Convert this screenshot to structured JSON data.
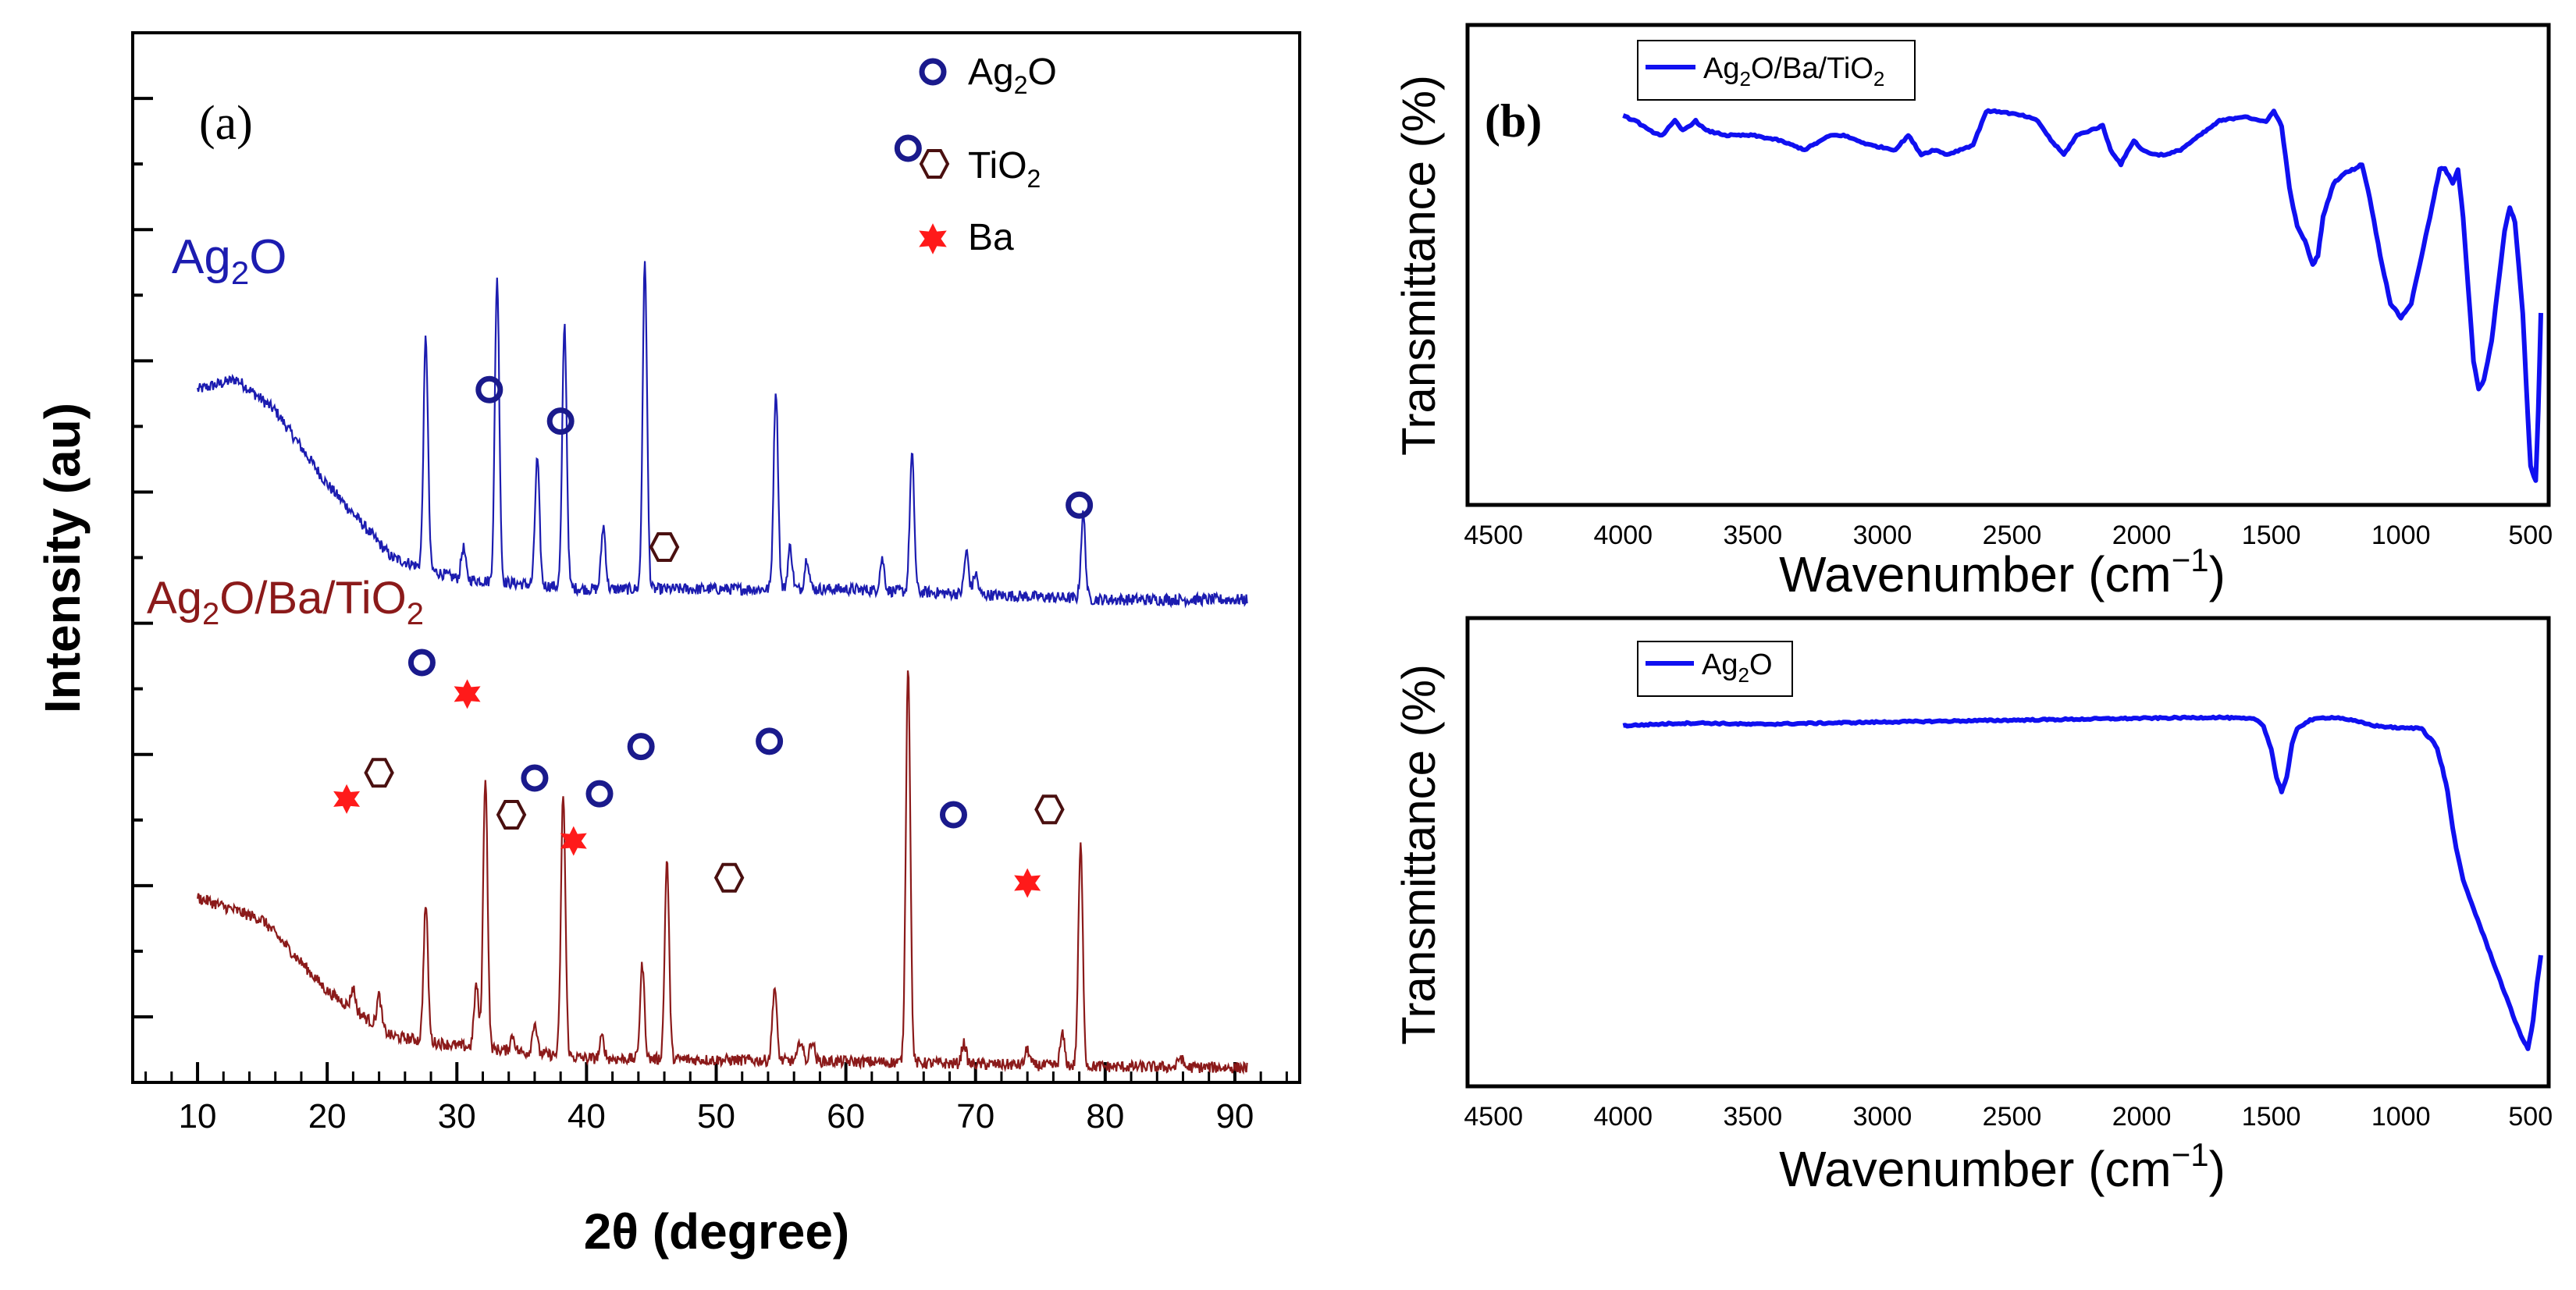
{
  "colors": {
    "ag2o_xrd": "#1c1cb0",
    "composite_xrd": "#8b1a1a",
    "ftir_line": "#1010f0",
    "ag2o_marker": "#1a1a8c",
    "tio2_marker": "#4a1010",
    "ba_marker": "#ff1a1a"
  },
  "chart_data": [
    {
      "id": "xrd",
      "type": "line",
      "panel_label": "(a)",
      "xlabel": "2θ (degree)",
      "ylabel": "Intensity (au)",
      "xlim": [
        5,
        95
      ],
      "ylim": [
        0,
        100
      ],
      "xticks": [
        "10",
        "20",
        "30",
        "40",
        "50",
        "60",
        "70",
        "80",
        "90"
      ],
      "legend": {
        "position": "top-right",
        "entries": [
          {
            "marker": "circle",
            "label_main": "Ag",
            "label_sub": "2",
            "label_tail": "O"
          },
          {
            "marker": "hexagon",
            "label_main": "TiO",
            "label_sub": "2",
            "label_tail": ""
          },
          {
            "marker": "star",
            "label_main": "Ba",
            "label_sub": "",
            "label_tail": ""
          }
        ]
      },
      "series": [
        {
          "name": "Ag2O",
          "label_main": "Ag",
          "label_sub": "2",
          "label_tail": "O",
          "baseline": [
            [
              10,
              66
            ],
            [
              13,
              67
            ],
            [
              16,
              64
            ],
            [
              20,
              57
            ],
            [
              25,
              50
            ],
            [
              30,
              48
            ],
            [
              40,
              47
            ],
            [
              60,
              47
            ],
            [
              80,
              46
            ],
            [
              91,
              46
            ]
          ],
          "peaks": [
            [
              27.6,
              22
            ],
            [
              30.5,
              3
            ],
            [
              33.1,
              29
            ],
            [
              36.2,
              12
            ],
            [
              38.3,
              25
            ],
            [
              41.3,
              6
            ],
            [
              44.5,
              31
            ],
            [
              54.6,
              19
            ],
            [
              55.7,
              4
            ],
            [
              57.0,
              3
            ],
            [
              62.8,
              3
            ],
            [
              65.1,
              13
            ],
            [
              69.3,
              4
            ],
            [
              70.0,
              2
            ],
            [
              78.3,
              8
            ]
          ]
        },
        {
          "name": "Ag2O/Ba/TiO2",
          "label_main": "Ag",
          "label_sub": "2",
          "label_tail": "O/Ba/TiO",
          "label_sub2": "2",
          "baseline": [
            [
              10,
              17.6
            ],
            [
              15,
              15.5
            ],
            [
              20,
              8.7
            ],
            [
              25,
              4.4
            ],
            [
              30,
              3.5
            ],
            [
              40,
              2.3
            ],
            [
              60,
              2
            ],
            [
              80,
              1.5
            ],
            [
              91,
              1.4
            ]
          ],
          "peaks": [
            [
              22,
              2
            ],
            [
              24,
              3
            ],
            [
              27.6,
              13
            ],
            [
              31.5,
              6
            ],
            [
              32.2,
              26
            ],
            [
              34.3,
              1.5
            ],
            [
              36,
              3
            ],
            [
              38.2,
              25
            ],
            [
              41.2,
              2
            ],
            [
              44.3,
              9
            ],
            [
              46.2,
              19
            ],
            [
              54.5,
              7
            ],
            [
              56.5,
              2
            ],
            [
              57.4,
              2
            ],
            [
              64.8,
              38
            ],
            [
              69.1,
              2
            ],
            [
              74,
              1.5
            ],
            [
              76.7,
              3
            ],
            [
              78.1,
              21
            ],
            [
              85.8,
              1
            ]
          ]
        }
      ],
      "annotations": [
        {
          "marker": "circle",
          "x": 64.8,
          "y": 89
        },
        {
          "marker": "circle",
          "x": 32.5,
          "y": 66
        },
        {
          "marker": "circle",
          "x": 38.0,
          "y": 63
        },
        {
          "marker": "circle",
          "x": 78.0,
          "y": 55
        },
        {
          "marker": "circle",
          "x": 27.3,
          "y": 40
        },
        {
          "marker": "circle",
          "x": 44.2,
          "y": 32
        },
        {
          "marker": "circle",
          "x": 54.1,
          "y": 32.5
        },
        {
          "marker": "circle",
          "x": 36.0,
          "y": 29
        },
        {
          "marker": "circle",
          "x": 41.0,
          "y": 27.5
        },
        {
          "marker": "circle",
          "x": 68.3,
          "y": 25.5
        },
        {
          "marker": "hexagon",
          "x": 46.0,
          "y": 51
        },
        {
          "marker": "hexagon",
          "x": 24.0,
          "y": 29.5
        },
        {
          "marker": "hexagon",
          "x": 34.2,
          "y": 25.5
        },
        {
          "marker": "hexagon",
          "x": 51.0,
          "y": 19.5
        },
        {
          "marker": "hexagon",
          "x": 75.7,
          "y": 26
        },
        {
          "marker": "star",
          "x": 21.5,
          "y": 27
        },
        {
          "marker": "star",
          "x": 30.8,
          "y": 37
        },
        {
          "marker": "star",
          "x": 39.0,
          "y": 23
        },
        {
          "marker": "star",
          "x": 74.0,
          "y": 19
        }
      ]
    },
    {
      "id": "ftir_composite",
      "type": "line",
      "panel_label": "(b)",
      "xlabel_main": "Wavenumber (cm",
      "xlabel_sup": "−1",
      "xlabel_tail": ")",
      "ylabel": "Transmittance (%)",
      "xlim": [
        4600,
        430
      ],
      "ylim": [
        0,
        100
      ],
      "xticks": [
        "4500",
        "4000",
        "3500",
        "3000",
        "2500",
        "2000",
        "1500",
        "1000",
        "500"
      ],
      "legend": {
        "position": "top-left",
        "label_main": "Ag",
        "label_sub": "2",
        "label_tail": "O/Ba/TiO",
        "label_sub2": "2"
      },
      "series": [
        {
          "name": "Ag2O/Ba/TiO2",
          "points": [
            [
              4000,
              81
            ],
            [
              3950,
              80
            ],
            [
              3900,
              78
            ],
            [
              3850,
              77
            ],
            [
              3800,
              80
            ],
            [
              3770,
              78
            ],
            [
              3720,
              80
            ],
            [
              3680,
              78
            ],
            [
              3600,
              77
            ],
            [
              3500,
              77
            ],
            [
              3400,
              76
            ],
            [
              3300,
              74
            ],
            [
              3200,
              77
            ],
            [
              3150,
              77
            ],
            [
              3050,
              75
            ],
            [
              2950,
              74
            ],
            [
              2900,
              77
            ],
            [
              2850,
              73
            ],
            [
              2800,
              74
            ],
            [
              2750,
              73
            ],
            [
              2700,
              74
            ],
            [
              2650,
              75
            ],
            [
              2600,
              82
            ],
            [
              2550,
              82
            ],
            [
              2450,
              81
            ],
            [
              2400,
              80
            ],
            [
              2350,
              76
            ],
            [
              2300,
              73
            ],
            [
              2250,
              77
            ],
            [
              2200,
              78
            ],
            [
              2150,
              79
            ],
            [
              2120,
              74
            ],
            [
              2080,
              71
            ],
            [
              2030,
              76
            ],
            [
              2000,
              74
            ],
            [
              1950,
              73
            ],
            [
              1900,
              73
            ],
            [
              1850,
              74
            ],
            [
              1800,
              76
            ],
            [
              1700,
              80
            ],
            [
              1600,
              81
            ],
            [
              1550,
              80
            ],
            [
              1520,
              80
            ],
            [
              1490,
              82
            ],
            [
              1460,
              79
            ],
            [
              1430,
              66
            ],
            [
              1400,
              58
            ],
            [
              1370,
              55
            ],
            [
              1340,
              50
            ],
            [
              1320,
              52
            ],
            [
              1300,
              60
            ],
            [
              1260,
              67
            ],
            [
              1220,
              69
            ],
            [
              1180,
              70
            ],
            [
              1150,
              71
            ],
            [
              1120,
              64
            ],
            [
              1080,
              52
            ],
            [
              1040,
              42
            ],
            [
              1000,
              39
            ],
            [
              960,
              42
            ],
            [
              920,
              52
            ],
            [
              880,
              62
            ],
            [
              850,
              70
            ],
            [
              830,
              70
            ],
            [
              800,
              67
            ],
            [
              780,
              70
            ],
            [
              760,
              60
            ],
            [
              740,
              45
            ],
            [
              720,
              30
            ],
            [
              700,
              24
            ],
            [
              680,
              26
            ],
            [
              650,
              34
            ],
            [
              620,
              48
            ],
            [
              600,
              57
            ],
            [
              580,
              62
            ],
            [
              560,
              59
            ],
            [
              530,
              40
            ],
            [
              510,
              18
            ],
            [
              500,
              8
            ],
            [
              480,
              5
            ],
            [
              470,
              20
            ],
            [
              460,
              40
            ]
          ]
        }
      ]
    },
    {
      "id": "ftir_ag2o",
      "type": "line",
      "panel_label": "",
      "xlabel_main": "Wavenumber (cm",
      "xlabel_sup": "−1",
      "xlabel_tail": ")",
      "ylabel": "Transmittance (%)",
      "xlim": [
        4600,
        430
      ],
      "ylim": [
        0,
        100
      ],
      "xticks": [
        "4500",
        "4000",
        "3500",
        "3000",
        "2500",
        "2000",
        "1500",
        "1000",
        "500"
      ],
      "legend": {
        "position": "top-left",
        "label_main": "Ag",
        "label_sub": "2",
        "label_tail": "O"
      },
      "series": [
        {
          "name": "Ag2O",
          "points": [
            [
              4000,
              77
            ],
            [
              3800,
              77.5
            ],
            [
              3700,
              77.6
            ],
            [
              3500,
              77.3
            ],
            [
              3000,
              77.8
            ],
            [
              2500,
              78.2
            ],
            [
              2000,
              78.6
            ],
            [
              1700,
              78.8
            ],
            [
              1560,
              78.4
            ],
            [
              1530,
              77
            ],
            [
              1500,
              72
            ],
            [
              1480,
              66
            ],
            [
              1460,
              63
            ],
            [
              1440,
              66
            ],
            [
              1420,
              73
            ],
            [
              1400,
              76.5
            ],
            [
              1350,
              78.2
            ],
            [
              1300,
              78.7
            ],
            [
              1250,
              78.8
            ],
            [
              1200,
              78.3
            ],
            [
              1100,
              77
            ],
            [
              1000,
              76.5
            ],
            [
              920,
              76.5
            ],
            [
              900,
              75
            ],
            [
              880,
              74
            ],
            [
              860,
              72
            ],
            [
              840,
              68
            ],
            [
              820,
              63
            ],
            [
              800,
              55
            ],
            [
              780,
              49
            ],
            [
              760,
              44
            ],
            [
              720,
              38
            ],
            [
              680,
              32
            ],
            [
              640,
              26
            ],
            [
              600,
              20
            ],
            [
              560,
              14
            ],
            [
              530,
              10
            ],
            [
              510,
              8
            ],
            [
              490,
              14
            ],
            [
              475,
              22
            ],
            [
              460,
              28
            ]
          ]
        }
      ]
    }
  ]
}
